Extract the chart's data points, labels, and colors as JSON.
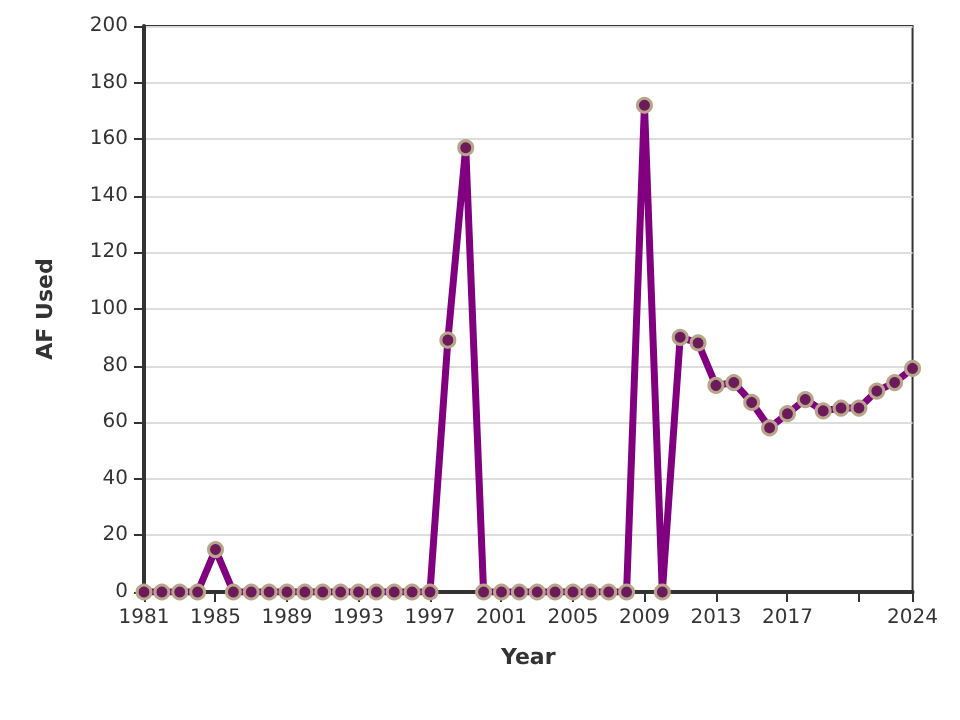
{
  "chart_data": {
    "type": "line",
    "xlabel": "Year",
    "ylabel": "AF Used",
    "x": [
      1981,
      1982,
      1983,
      1984,
      1985,
      1986,
      1987,
      1988,
      1989,
      1990,
      1991,
      1992,
      1993,
      1994,
      1995,
      1996,
      1997,
      1998,
      1999,
      2000,
      2001,
      2002,
      2003,
      2004,
      2005,
      2006,
      2007,
      2008,
      2009,
      2010,
      2011,
      2012,
      2013,
      2014,
      2015,
      2016,
      2017,
      2018,
      2019,
      2020,
      2021,
      2022,
      2023,
      2024
    ],
    "series": [
      {
        "color": "#800080",
        "values": [
          0,
          0,
          0,
          0,
          15,
          0,
          0,
          0,
          0,
          0,
          0,
          0,
          0,
          0,
          0,
          0,
          0,
          89,
          157,
          0,
          0,
          0,
          0,
          0,
          0,
          0,
          0,
          0,
          172,
          0,
          90,
          88,
          73,
          74,
          67,
          58,
          63,
          68,
          64,
          65,
          65,
          71,
          74,
          79
        ]
      }
    ],
    "xlim": [
      1981,
      2024
    ],
    "xticks": [
      1981,
      1985,
      1989,
      1993,
      1997,
      2001,
      2005,
      2009,
      2013,
      2017,
      {
        "value": 2021,
        "label": null
      },
      2024
    ],
    "ylim": [
      0,
      200
    ],
    "yticks": [
      0,
      20,
      40,
      60,
      80,
      100,
      120,
      140,
      160,
      180,
      200
    ],
    "grid": "y",
    "marker": "circle",
    "line_style": "solid"
  }
}
